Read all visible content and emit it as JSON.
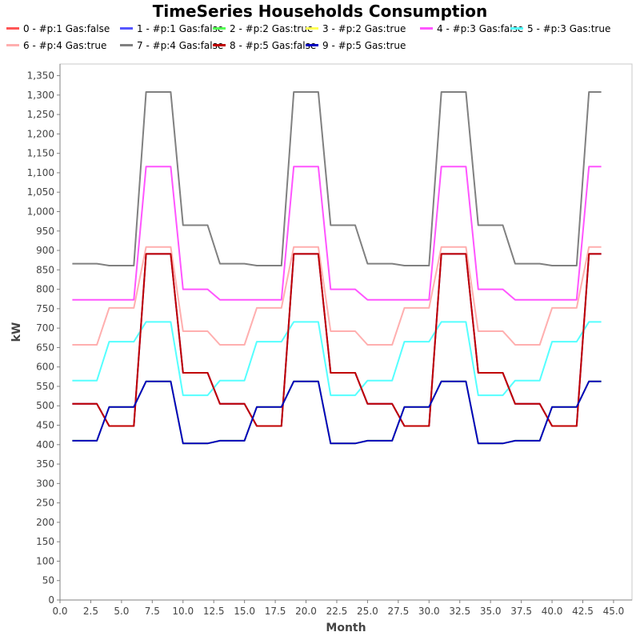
{
  "chart_data": {
    "type": "line",
    "title": "TimeSeries Households Consumption",
    "xlabel": "Month",
    "ylabel": "kW",
    "xlim": [
      0,
      46.5
    ],
    "ylim": [
      0,
      1380
    ],
    "x_ticks": [
      "0.0",
      "2.5",
      "5.0",
      "7.5",
      "10.0",
      "12.5",
      "15.0",
      "17.5",
      "20.0",
      "22.5",
      "25.0",
      "27.5",
      "30.0",
      "32.5",
      "35.0",
      "37.5",
      "40.0",
      "42.5",
      "45.0"
    ],
    "y_ticks": [
      "0",
      "50",
      "100",
      "150",
      "200",
      "250",
      "300",
      "350",
      "400",
      "450",
      "500",
      "550",
      "600",
      "650",
      "700",
      "750",
      "800",
      "850",
      "900",
      "950",
      "1,000",
      "1,050",
      "1,100",
      "1,150",
      "1,200",
      "1,250",
      "1,300",
      "1,350"
    ],
    "grid": false,
    "legend_position": "top",
    "x": [
      1,
      2,
      3,
      4,
      5,
      6,
      7,
      8,
      9,
      10,
      11,
      12,
      13,
      14,
      15,
      16,
      17,
      18,
      19,
      20,
      21,
      22,
      23,
      24,
      25,
      26,
      27,
      28,
      29,
      30,
      31,
      32,
      33,
      34,
      35,
      36,
      37,
      38,
      39,
      40,
      41,
      42,
      43,
      44
    ],
    "series": [
      {
        "name": "0 - #p:1 Gas:false",
        "color": "#ff5555",
        "values": [
          505,
          505,
          505,
          448,
          448,
          448,
          891,
          891,
          891,
          585,
          585,
          585,
          505,
          505,
          505,
          448,
          448,
          448,
          891,
          891,
          891,
          585,
          585,
          585,
          505,
          505,
          505,
          448,
          448,
          448,
          891,
          891,
          891,
          585,
          585,
          585,
          505,
          505,
          505,
          448,
          448,
          448,
          891,
          891
        ]
      },
      {
        "name": "1 - #p:1 Gas:false",
        "color": "#5555ff",
        "values": [
          505,
          505,
          505,
          448,
          448,
          448,
          891,
          891,
          891,
          585,
          585,
          585,
          505,
          505,
          505,
          448,
          448,
          448,
          891,
          891,
          891,
          585,
          585,
          585,
          505,
          505,
          505,
          448,
          448,
          448,
          891,
          891,
          891,
          585,
          585,
          585,
          505,
          505,
          505,
          448,
          448,
          448,
          891,
          891
        ]
      },
      {
        "name": "2 - #p:2 Gas:true",
        "color": "#55ff55",
        "values": [
          410,
          410,
          410,
          497,
          497,
          497,
          563,
          563,
          563,
          403,
          403,
          403,
          410,
          410,
          410,
          497,
          497,
          497,
          563,
          563,
          563,
          403,
          403,
          403,
          410,
          410,
          410,
          497,
          497,
          497,
          563,
          563,
          563,
          403,
          403,
          403,
          410,
          410,
          410,
          497,
          497,
          497,
          563,
          563
        ]
      },
      {
        "name": "3 - #p:2 Gas:true",
        "color": "#ffff55",
        "values": [
          410,
          410,
          410,
          497,
          497,
          497,
          563,
          563,
          563,
          403,
          403,
          403,
          410,
          410,
          410,
          497,
          497,
          497,
          563,
          563,
          563,
          403,
          403,
          403,
          410,
          410,
          410,
          497,
          497,
          497,
          563,
          563,
          563,
          403,
          403,
          403,
          410,
          410,
          410,
          497,
          497,
          497,
          563,
          563
        ]
      },
      {
        "name": "4 - #p:3 Gas:false",
        "color": "#ff55ff",
        "values": [
          773,
          773,
          773,
          773,
          773,
          773,
          1116,
          1116,
          1116,
          800,
          800,
          800,
          773,
          773,
          773,
          773,
          773,
          773,
          1116,
          1116,
          1116,
          800,
          800,
          800,
          773,
          773,
          773,
          773,
          773,
          773,
          1116,
          1116,
          1116,
          800,
          800,
          800,
          773,
          773,
          773,
          773,
          773,
          773,
          1116,
          1116
        ]
      },
      {
        "name": "5 - #p:3 Gas:true",
        "color": "#55ffff",
        "values": [
          565,
          565,
          565,
          665,
          665,
          665,
          716,
          716,
          716,
          527,
          527,
          527,
          565,
          565,
          565,
          665,
          665,
          665,
          716,
          716,
          716,
          527,
          527,
          527,
          565,
          565,
          565,
          665,
          665,
          665,
          716,
          716,
          716,
          527,
          527,
          527,
          565,
          565,
          565,
          665,
          665,
          665,
          716,
          716
        ]
      },
      {
        "name": "6 - #p:4 Gas:true",
        "color": "#ffafaf",
        "values": [
          657,
          657,
          657,
          752,
          752,
          752,
          909,
          909,
          909,
          692,
          692,
          692,
          657,
          657,
          657,
          752,
          752,
          752,
          909,
          909,
          909,
          692,
          692,
          692,
          657,
          657,
          657,
          752,
          752,
          752,
          909,
          909,
          909,
          692,
          692,
          692,
          657,
          657,
          657,
          752,
          752,
          752,
          909,
          909
        ]
      },
      {
        "name": "7 - #p:4 Gas:false",
        "color": "#808080",
        "values": [
          866,
          866,
          866,
          861,
          861,
          861,
          1308,
          1308,
          1308,
          965,
          965,
          965,
          866,
          866,
          866,
          861,
          861,
          861,
          1308,
          1308,
          1308,
          965,
          965,
          965,
          866,
          866,
          866,
          861,
          861,
          861,
          1308,
          1308,
          1308,
          965,
          965,
          965,
          866,
          866,
          866,
          861,
          861,
          861,
          1308,
          1308
        ]
      },
      {
        "name": "8 - #p:5 Gas:false",
        "color": "#c00000",
        "values": [
          505,
          505,
          505,
          448,
          448,
          448,
          891,
          891,
          891,
          585,
          585,
          585,
          505,
          505,
          505,
          448,
          448,
          448,
          891,
          891,
          891,
          585,
          585,
          585,
          505,
          505,
          505,
          448,
          448,
          448,
          891,
          891,
          891,
          585,
          585,
          585,
          505,
          505,
          505,
          448,
          448,
          448,
          891,
          891
        ]
      },
      {
        "name": "9 - #p:5 Gas:true",
        "color": "#0000c0",
        "values": [
          410,
          410,
          410,
          497,
          497,
          497,
          563,
          563,
          563,
          403,
          403,
          403,
          410,
          410,
          410,
          497,
          497,
          497,
          563,
          563,
          563,
          403,
          403,
          403,
          410,
          410,
          410,
          497,
          497,
          497,
          563,
          563,
          563,
          403,
          403,
          403,
          410,
          410,
          410,
          497,
          497,
          497,
          563,
          563
        ]
      }
    ]
  }
}
